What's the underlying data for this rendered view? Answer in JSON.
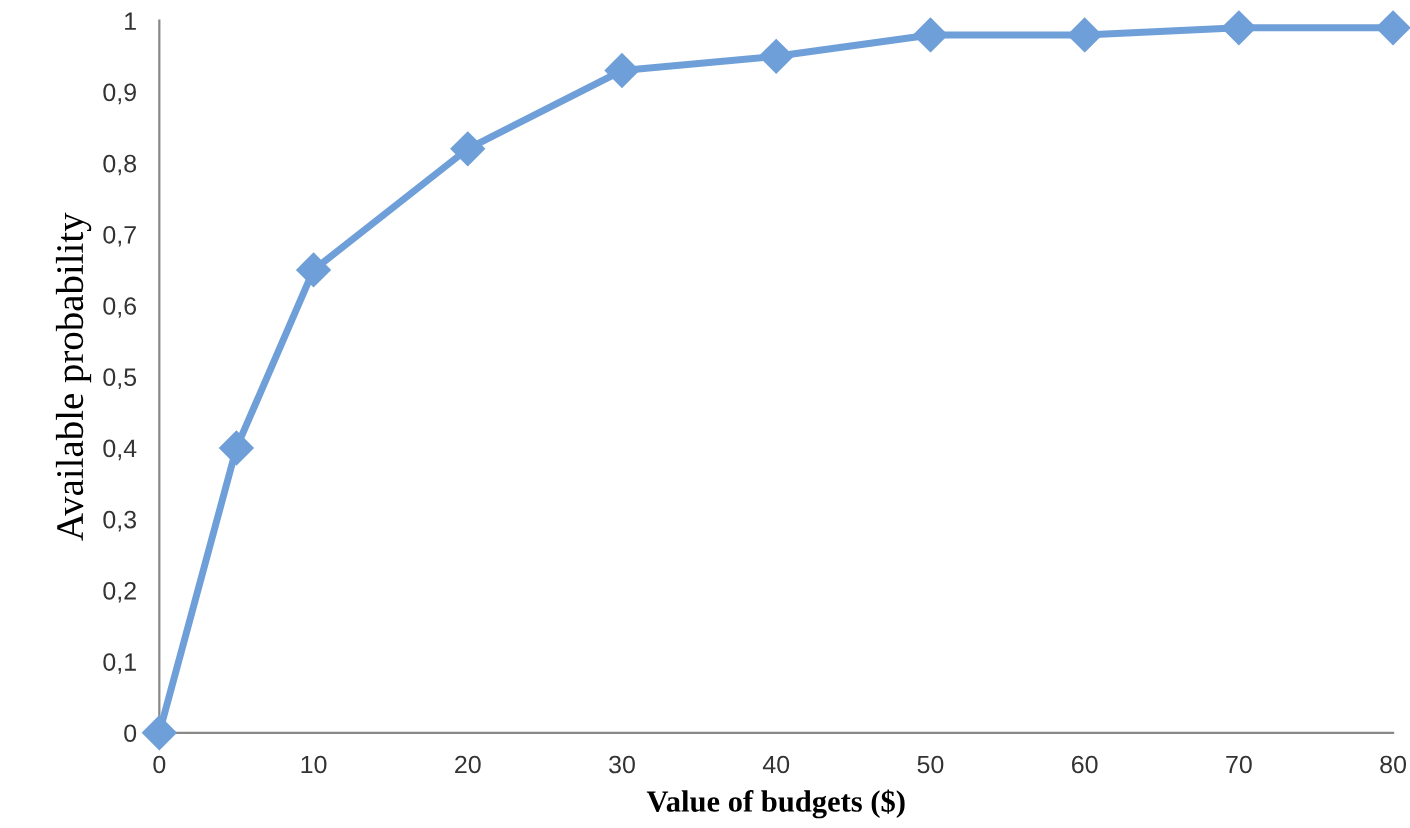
{
  "chart_data": {
    "type": "line",
    "xlabel": "Value of budgets ($)",
    "ylabel": "Available probability",
    "x": [
      0,
      5,
      10,
      20,
      30,
      40,
      50,
      60,
      70,
      80
    ],
    "series": [
      {
        "color": "#6f9fd8",
        "values": [
          0,
          0.4,
          0.65,
          0.82,
          0.93,
          0.95,
          0.98,
          0.98,
          0.99,
          0.99
        ]
      }
    ],
    "xlim": [
      0,
      80
    ],
    "xticks": [
      0,
      10,
      20,
      30,
      40,
      50,
      60,
      70,
      80
    ],
    "ylim": [
      0,
      1
    ],
    "yticks": [
      0,
      {
        "value": 0.1,
        "label": "0,1"
      },
      {
        "value": 0.2,
        "label": "0,2"
      },
      {
        "value": 0.3,
        "label": "0,3"
      },
      {
        "value": 0.4,
        "label": "0,4"
      },
      {
        "value": 0.5,
        "label": "0,5"
      },
      {
        "value": 0.6,
        "label": "0,6"
      },
      {
        "value": 0.7,
        "label": "0,7"
      },
      {
        "value": 0.8,
        "label": "0,8"
      },
      {
        "value": 0.9,
        "label": "0,9"
      },
      1
    ],
    "marker": "diamond",
    "line_style": "solid",
    "grid": false,
    "legend": false
  }
}
